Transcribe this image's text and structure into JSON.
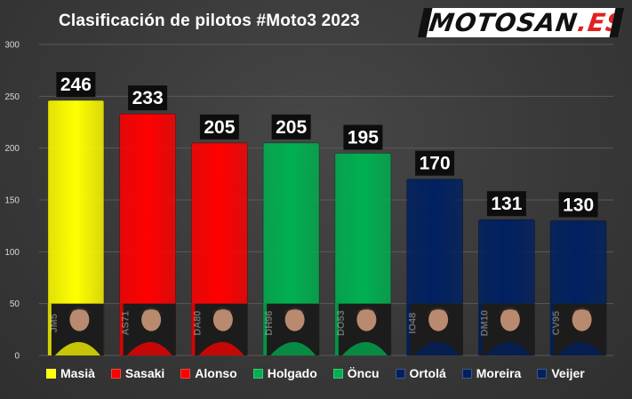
{
  "title": "Clasificación de pilotos #Moto3 2023",
  "logo": {
    "main": "MOTOSAN",
    "suffix": ".ES"
  },
  "chart_data": {
    "type": "bar",
    "title": "Clasificación de pilotos #Moto3 2023",
    "xlabel": "",
    "ylabel": "",
    "ylim": [
      0,
      300
    ],
    "yticks": [
      0,
      50,
      100,
      150,
      200,
      250,
      300
    ],
    "grid": true,
    "legend_position": "bottom",
    "categories": [
      "Masià",
      "Sasaki",
      "Alonso",
      "Holgado",
      "Öncu",
      "Ortolá",
      "Moreira",
      "Veijer"
    ],
    "values": [
      246,
      233,
      205,
      205,
      195,
      170,
      131,
      130
    ],
    "colors": [
      "#ffff00",
      "#ff0000",
      "#ff0000",
      "#00b050",
      "#00b050",
      "#002060",
      "#002060",
      "#002060"
    ],
    "rider_numbers": [
      "JM5",
      "AS71",
      "DA80",
      "DH96",
      "DO53",
      "IO48",
      "DM10",
      "CV95"
    ]
  },
  "legend": [
    {
      "label": "Masià",
      "color": "#ffff00"
    },
    {
      "label": "Sasaki",
      "color": "#ff0000"
    },
    {
      "label": "Alonso",
      "color": "#ff0000"
    },
    {
      "label": "Holgado",
      "color": "#00b050"
    },
    {
      "label": "Öncu",
      "color": "#00b050"
    },
    {
      "label": "Ortolá",
      "color": "#002060"
    },
    {
      "label": "Moreira",
      "color": "#002060"
    },
    {
      "label": "Veijer",
      "color": "#002060"
    }
  ]
}
